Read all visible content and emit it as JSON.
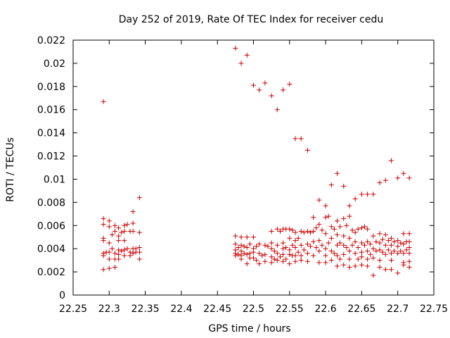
{
  "chart_data": {
    "type": "scatter",
    "title": "Day 252 of 2019, Rate Of TEC Index for receiver cedu",
    "xlabel": "GPS time / hours",
    "ylabel": "ROTI / TECUs",
    "xlim": [
      22.25,
      22.75
    ],
    "ylim": [
      0,
      0.022
    ],
    "x_ticks": [
      "22.25",
      "22.3",
      "22.35",
      "22.4",
      "22.45",
      "22.5",
      "22.55",
      "22.6",
      "22.65",
      "22.7",
      "22.75"
    ],
    "y_ticks": [
      "0",
      "0.002",
      "0.004",
      "0.006",
      "0.008",
      "0.01",
      "0.012",
      "0.014",
      "0.016",
      "0.018",
      "0.02",
      "0.022"
    ],
    "marker": "plus",
    "color": "#cc0000",
    "series": [
      {
        "name": "ROTI",
        "points": [
          [
            22.292,
            0.0167
          ],
          [
            22.292,
            0.0066
          ],
          [
            22.292,
            0.0061
          ],
          [
            22.292,
            0.0049
          ],
          [
            22.292,
            0.0047
          ],
          [
            22.292,
            0.0036
          ],
          [
            22.292,
            0.0034
          ],
          [
            22.292,
            0.0022
          ],
          [
            22.296,
            0.0037
          ],
          [
            22.3,
            0.0064
          ],
          [
            22.3,
            0.0059
          ],
          [
            22.3,
            0.0045
          ],
          [
            22.3,
            0.0037
          ],
          [
            22.3,
            0.0031
          ],
          [
            22.3,
            0.0023
          ],
          [
            22.304,
            0.0052
          ],
          [
            22.304,
            0.004
          ],
          [
            22.308,
            0.006
          ],
          [
            22.308,
            0.0055
          ],
          [
            22.308,
            0.0036
          ],
          [
            22.308,
            0.0031
          ],
          [
            22.308,
            0.0024
          ],
          [
            22.313,
            0.0058
          ],
          [
            22.313,
            0.0051
          ],
          [
            22.313,
            0.0047
          ],
          [
            22.313,
            0.0039
          ],
          [
            22.313,
            0.0035
          ],
          [
            22.313,
            0.0031
          ],
          [
            22.317,
            0.0054
          ],
          [
            22.317,
            0.0038
          ],
          [
            22.321,
            0.006
          ],
          [
            22.321,
            0.0055
          ],
          [
            22.321,
            0.0047
          ],
          [
            22.321,
            0.0039
          ],
          [
            22.321,
            0.0034
          ],
          [
            22.325,
            0.0061
          ],
          [
            22.325,
            0.004
          ],
          [
            22.329,
            0.0055
          ],
          [
            22.329,
            0.0037
          ],
          [
            22.329,
            0.0034
          ],
          [
            22.333,
            0.0072
          ],
          [
            22.333,
            0.0062
          ],
          [
            22.333,
            0.0055
          ],
          [
            22.333,
            0.004
          ],
          [
            22.333,
            0.0036
          ],
          [
            22.337,
            0.004
          ],
          [
            22.337,
            0.0037
          ],
          [
            22.342,
            0.0084
          ],
          [
            22.342,
            0.0054
          ],
          [
            22.342,
            0.0041
          ],
          [
            22.342,
            0.0037
          ],
          [
            22.342,
            0.0031
          ],
          [
            22.475,
            0.0213
          ],
          [
            22.475,
            0.0051
          ],
          [
            22.475,
            0.0044
          ],
          [
            22.475,
            0.0039
          ],
          [
            22.475,
            0.0036
          ],
          [
            22.475,
            0.0034
          ],
          [
            22.479,
            0.0041
          ],
          [
            22.479,
            0.0035
          ],
          [
            22.483,
            0.02
          ],
          [
            22.483,
            0.005
          ],
          [
            22.483,
            0.0043
          ],
          [
            22.483,
            0.0038
          ],
          [
            22.483,
            0.0034
          ],
          [
            22.483,
            0.0031
          ],
          [
            22.487,
            0.0042
          ],
          [
            22.487,
            0.0036
          ],
          [
            22.491,
            0.0207
          ],
          [
            22.491,
            0.005
          ],
          [
            22.491,
            0.0041
          ],
          [
            22.491,
            0.0035
          ],
          [
            22.491,
            0.0027
          ],
          [
            22.495,
            0.0044
          ],
          [
            22.495,
            0.0036
          ],
          [
            22.495,
            0.0032
          ],
          [
            22.5,
            0.0181
          ],
          [
            22.5,
            0.005
          ],
          [
            22.5,
            0.004
          ],
          [
            22.5,
            0.0037
          ],
          [
            22.5,
            0.0032
          ],
          [
            22.504,
            0.0042
          ],
          [
            22.504,
            0.003
          ],
          [
            22.508,
            0.0177
          ],
          [
            22.508,
            0.0044
          ],
          [
            22.508,
            0.0036
          ],
          [
            22.508,
            0.0027
          ],
          [
            22.512,
            0.0034
          ],
          [
            22.516,
            0.0183
          ],
          [
            22.516,
            0.0043
          ],
          [
            22.516,
            0.0035
          ],
          [
            22.516,
            0.0029
          ],
          [
            22.52,
            0.0042
          ],
          [
            22.525,
            0.0172
          ],
          [
            22.525,
            0.0055
          ],
          [
            22.525,
            0.0045
          ],
          [
            22.525,
            0.004
          ],
          [
            22.525,
            0.0033
          ],
          [
            22.525,
            0.0028
          ],
          [
            22.529,
            0.0038
          ],
          [
            22.529,
            0.0031
          ],
          [
            22.533,
            0.016
          ],
          [
            22.533,
            0.0057
          ],
          [
            22.533,
            0.0043
          ],
          [
            22.533,
            0.0036
          ],
          [
            22.533,
            0.003
          ],
          [
            22.537,
            0.0055
          ],
          [
            22.537,
            0.0033
          ],
          [
            22.541,
            0.0177
          ],
          [
            22.541,
            0.0057
          ],
          [
            22.541,
            0.0045
          ],
          [
            22.541,
            0.004
          ],
          [
            22.541,
            0.0035
          ],
          [
            22.541,
            0.0029
          ],
          [
            22.545,
            0.0057
          ],
          [
            22.545,
            0.0041
          ],
          [
            22.545,
            0.0031
          ],
          [
            22.55,
            0.0182
          ],
          [
            22.55,
            0.0057
          ],
          [
            22.55,
            0.0049
          ],
          [
            22.55,
            0.0039
          ],
          [
            22.55,
            0.0035
          ],
          [
            22.55,
            0.0027
          ],
          [
            22.554,
            0.0056
          ],
          [
            22.554,
            0.0043
          ],
          [
            22.554,
            0.0034
          ],
          [
            22.558,
            0.0135
          ],
          [
            22.558,
            0.0054
          ],
          [
            22.558,
            0.0047
          ],
          [
            22.558,
            0.0041
          ],
          [
            22.558,
            0.0034
          ],
          [
            22.558,
            0.0029
          ],
          [
            22.562,
            0.0049
          ],
          [
            22.562,
            0.0037
          ],
          [
            22.566,
            0.0135
          ],
          [
            22.566,
            0.0055
          ],
          [
            22.566,
            0.0043
          ],
          [
            22.566,
            0.0034
          ],
          [
            22.566,
            0.003
          ],
          [
            22.57,
            0.0054
          ],
          [
            22.57,
            0.0039
          ],
          [
            22.575,
            0.0125
          ],
          [
            22.575,
            0.0055
          ],
          [
            22.575,
            0.0044
          ],
          [
            22.575,
            0.0036
          ],
          [
            22.575,
            0.0029
          ],
          [
            22.579,
            0.0054
          ],
          [
            22.579,
            0.0042
          ],
          [
            22.583,
            0.0067
          ],
          [
            22.583,
            0.0055
          ],
          [
            22.583,
            0.0046
          ],
          [
            22.583,
            0.0034
          ],
          [
            22.587,
            0.0058
          ],
          [
            22.587,
            0.0041
          ],
          [
            22.591,
            0.0082
          ],
          [
            22.591,
            0.0061
          ],
          [
            22.591,
            0.0047
          ],
          [
            22.591,
            0.0038
          ],
          [
            22.591,
            0.0028
          ],
          [
            22.595,
            0.0056
          ],
          [
            22.595,
            0.0043
          ],
          [
            22.6,
            0.0077
          ],
          [
            22.6,
            0.0067
          ],
          [
            22.6,
            0.0053
          ],
          [
            22.6,
            0.004
          ],
          [
            22.6,
            0.0034
          ],
          [
            22.6,
            0.0028
          ],
          [
            22.604,
            0.0068
          ],
          [
            22.604,
            0.0045
          ],
          [
            22.608,
            0.0095
          ],
          [
            22.608,
            0.0059
          ],
          [
            22.608,
            0.0049
          ],
          [
            22.608,
            0.0038
          ],
          [
            22.608,
            0.003
          ],
          [
            22.612,
            0.0057
          ],
          [
            22.612,
            0.0036
          ],
          [
            22.616,
            0.0105
          ],
          [
            22.616,
            0.0064
          ],
          [
            22.616,
            0.0052
          ],
          [
            22.616,
            0.0043
          ],
          [
            22.616,
            0.0034
          ],
          [
            22.616,
            0.0025
          ],
          [
            22.62,
            0.0059
          ],
          [
            22.62,
            0.0045
          ],
          [
            22.62,
            0.0031
          ],
          [
            22.625,
            0.0094
          ],
          [
            22.625,
            0.0066
          ],
          [
            22.625,
            0.0051
          ],
          [
            22.625,
            0.0043
          ],
          [
            22.625,
            0.0035
          ],
          [
            22.625,
            0.0026
          ],
          [
            22.629,
            0.006
          ],
          [
            22.629,
            0.0041
          ],
          [
            22.633,
            0.0077
          ],
          [
            22.633,
            0.0068
          ],
          [
            22.633,
            0.0049
          ],
          [
            22.633,
            0.0038
          ],
          [
            22.633,
            0.0031
          ],
          [
            22.633,
            0.0024
          ],
          [
            22.637,
            0.0056
          ],
          [
            22.637,
            0.0043
          ],
          [
            22.641,
            0.0083
          ],
          [
            22.641,
            0.0054
          ],
          [
            22.641,
            0.0046
          ],
          [
            22.641,
            0.0036
          ],
          [
            22.641,
            0.0025
          ],
          [
            22.645,
            0.0057
          ],
          [
            22.645,
            0.0041
          ],
          [
            22.645,
            0.0031
          ],
          [
            22.65,
            0.0087
          ],
          [
            22.65,
            0.0058
          ],
          [
            22.65,
            0.0045
          ],
          [
            22.65,
            0.0037
          ],
          [
            22.65,
            0.0033
          ],
          [
            22.65,
            0.0026
          ],
          [
            22.654,
            0.0059
          ],
          [
            22.654,
            0.0043
          ],
          [
            22.658,
            0.0087
          ],
          [
            22.658,
            0.0057
          ],
          [
            22.658,
            0.0046
          ],
          [
            22.658,
            0.0038
          ],
          [
            22.658,
            0.0031
          ],
          [
            22.658,
            0.0025
          ],
          [
            22.662,
            0.0044
          ],
          [
            22.662,
            0.0035
          ],
          [
            22.666,
            0.0087
          ],
          [
            22.666,
            0.0051
          ],
          [
            22.666,
            0.004
          ],
          [
            22.666,
            0.0032
          ],
          [
            22.666,
            0.0017
          ],
          [
            22.67,
            0.0046
          ],
          [
            22.67,
            0.0038
          ],
          [
            22.675,
            0.0097
          ],
          [
            22.675,
            0.0053
          ],
          [
            22.675,
            0.0045
          ],
          [
            22.675,
            0.0039
          ],
          [
            22.675,
            0.003
          ],
          [
            22.675,
            0.0024
          ],
          [
            22.679,
            0.0048
          ],
          [
            22.679,
            0.0037
          ],
          [
            22.683,
            0.0099
          ],
          [
            22.683,
            0.0052
          ],
          [
            22.683,
            0.0043
          ],
          [
            22.683,
            0.0035
          ],
          [
            22.683,
            0.0022
          ],
          [
            22.687,
            0.0047
          ],
          [
            22.687,
            0.0039
          ],
          [
            22.691,
            0.0116
          ],
          [
            22.691,
            0.0049
          ],
          [
            22.691,
            0.0043
          ],
          [
            22.691,
            0.0036
          ],
          [
            22.691,
            0.003
          ],
          [
            22.691,
            0.0022
          ],
          [
            22.695,
            0.0046
          ],
          [
            22.695,
            0.0038
          ],
          [
            22.7,
            0.0101
          ],
          [
            22.7,
            0.0047
          ],
          [
            22.7,
            0.0042
          ],
          [
            22.7,
            0.0036
          ],
          [
            22.7,
            0.0019
          ],
          [
            22.704,
            0.0045
          ],
          [
            22.704,
            0.0038
          ],
          [
            22.708,
            0.0105
          ],
          [
            22.708,
            0.0053
          ],
          [
            22.708,
            0.0044
          ],
          [
            22.708,
            0.0036
          ],
          [
            22.708,
            0.0028
          ],
          [
            22.708,
            0.0026
          ],
          [
            22.712,
            0.0046
          ],
          [
            22.712,
            0.0039
          ],
          [
            22.716,
            0.0101
          ],
          [
            22.716,
            0.0053
          ],
          [
            22.716,
            0.0046
          ],
          [
            22.716,
            0.0041
          ],
          [
            22.716,
            0.0036
          ],
          [
            22.716,
            0.0029
          ],
          [
            22.716,
            0.0024
          ]
        ]
      }
    ]
  }
}
